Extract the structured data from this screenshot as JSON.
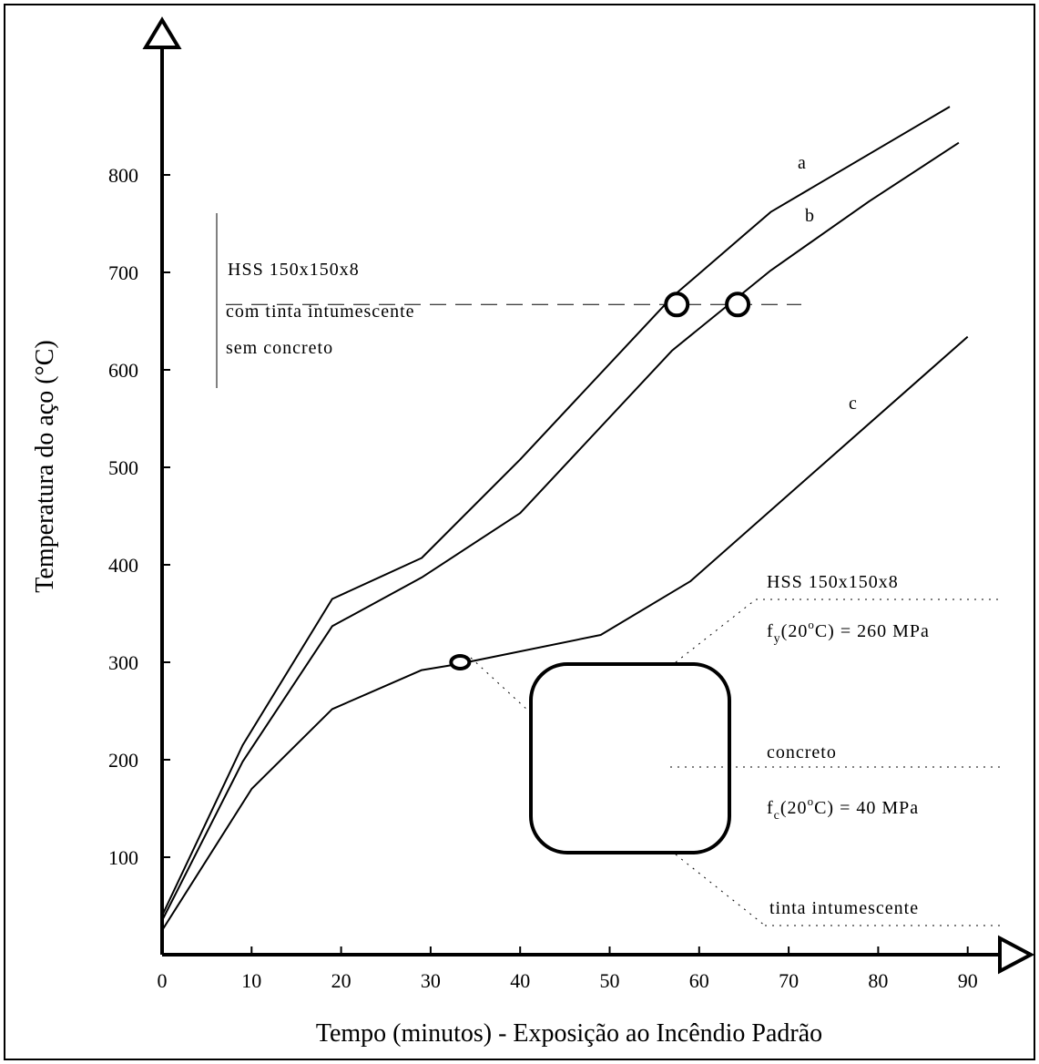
{
  "chart_data": {
    "type": "line",
    "title": "",
    "xlabel": "Tempo (minutos) - Exposição ao Incêndio Padrão",
    "ylabel": "Temperatura do aço (°C)",
    "xlim": [
      0,
      92
    ],
    "ylim": [
      0,
      870
    ],
    "xticks": [
      0,
      10,
      20,
      30,
      40,
      50,
      60,
      70,
      80,
      90
    ],
    "yticks": [
      100,
      200,
      300,
      400,
      500,
      600,
      700,
      800
    ],
    "grid": false,
    "series": [
      {
        "name": "a",
        "x": [
          0,
          9,
          19,
          29,
          40,
          57,
          68,
          88
        ],
        "y": [
          40,
          215,
          365,
          407,
          508,
          675,
          762,
          870
        ]
      },
      {
        "name": "b",
        "x": [
          0,
          9,
          19,
          29,
          40,
          57,
          68,
          79,
          89
        ],
        "y": [
          35,
          198,
          337,
          387,
          453,
          620,
          702,
          773,
          833
        ]
      },
      {
        "name": "c",
        "x": [
          0,
          10,
          19,
          29,
          33,
          49,
          59,
          90
        ],
        "y": [
          25,
          170,
          252,
          292,
          298,
          328,
          383,
          634
        ]
      }
    ],
    "markers": [
      {
        "series": "a",
        "x": 57.5,
        "y": 667
      },
      {
        "series": "b",
        "x": 64.3,
        "y": 667
      },
      {
        "series": "c",
        "x": 33.3,
        "y": 300
      }
    ],
    "reference_line_y": 667,
    "annotations": {
      "box_top": {
        "line1_main": "HSS",
        "line1_rest": "150x150x8",
        "line2": "com tinta intumescente",
        "line3": "sem concreto"
      },
      "section": {
        "hss_main": "HSS",
        "hss_rest": "150x150x8",
        "fy_f": "f",
        "fy_sub": "y",
        "fy_open": "(20",
        "fy_sup": "o",
        "fy_close": "C) = 260 MPa",
        "concrete": "concreto",
        "fc_f": "f",
        "fc_sub": "c",
        "fc_open": "(20",
        "fc_sup": "o",
        "fc_close": "C) = 40 MPa",
        "paint": "tinta intumescente"
      }
    }
  }
}
